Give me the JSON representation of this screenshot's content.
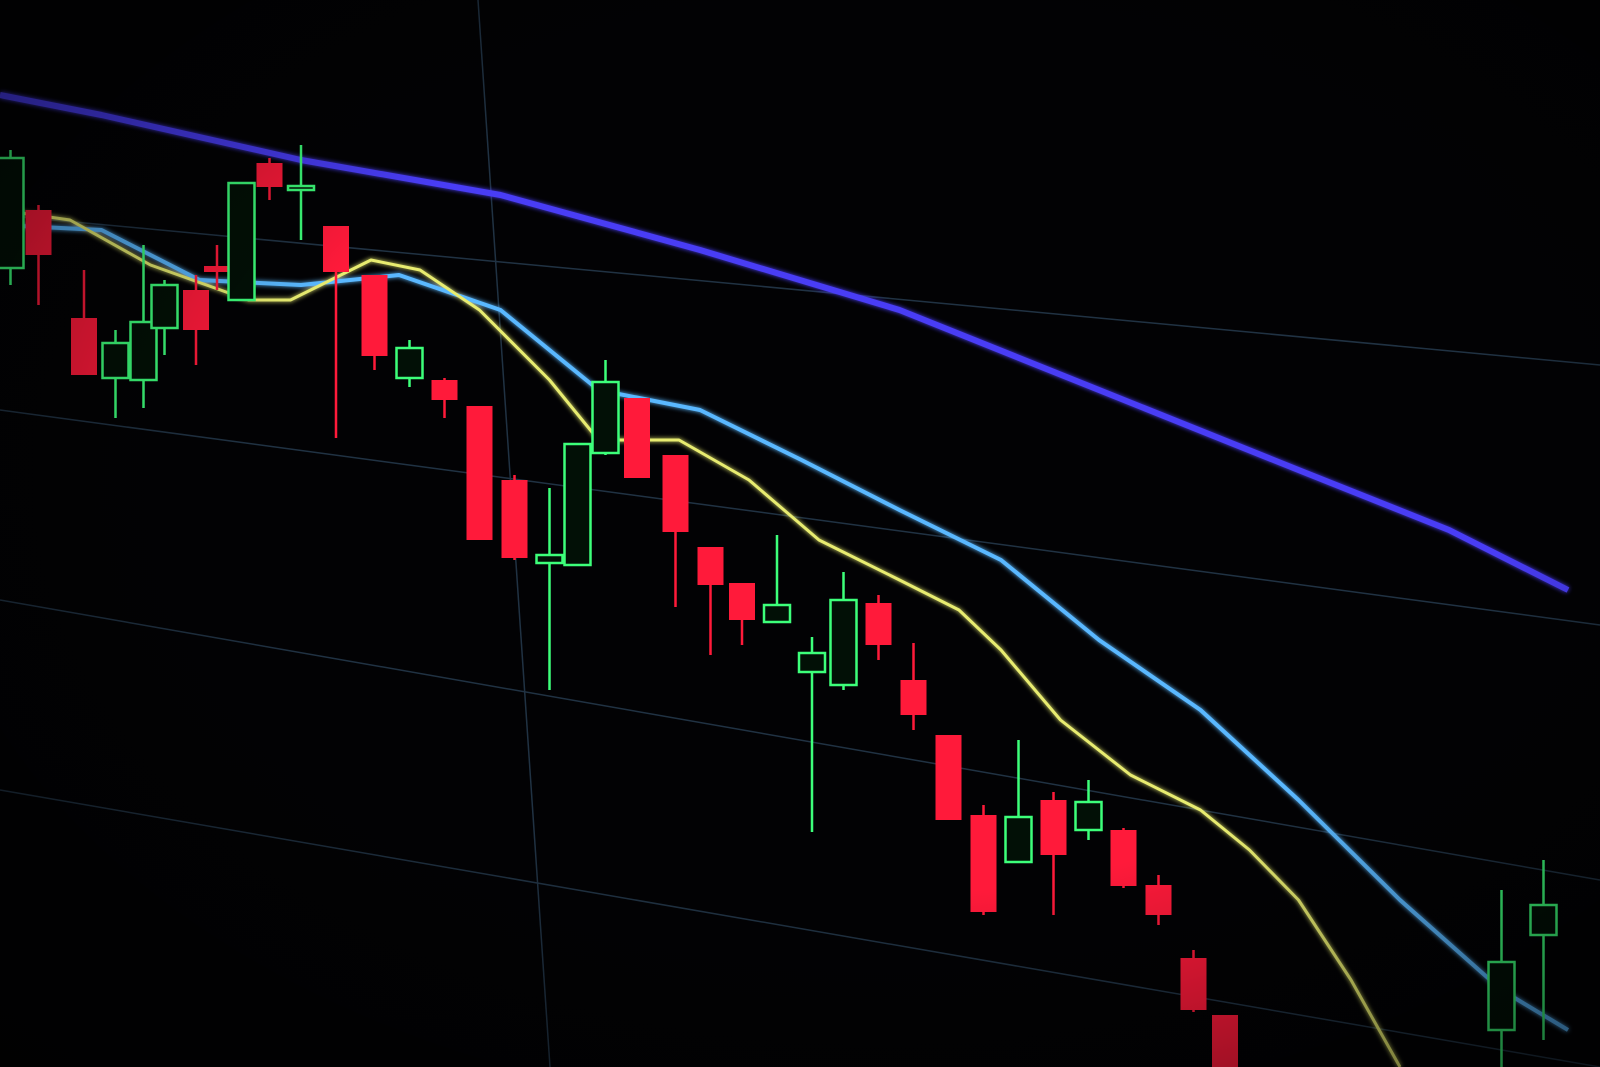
{
  "chart_data": {
    "type": "candlestick",
    "title": "",
    "xlabel": "",
    "ylabel": "",
    "grid": true,
    "legend": "none",
    "colors": {
      "up": "#3dff7a",
      "down": "#ff1a3a",
      "ma_slow": "#4a3cf5",
      "ma_mid": "#5ab8ff",
      "ma_fast": "#e8ec70",
      "grid": "#3a5a78",
      "background": "#020204"
    },
    "candles": [
      {
        "t": 0.3,
        "o": 79.9,
        "h": 91.7,
        "l": 78.2,
        "c": 90.9
      },
      {
        "t": 1.1,
        "o": 85.7,
        "h": 86.2,
        "l": 76.2,
        "c": 81.2
      },
      {
        "t": 2.4,
        "o": 74.9,
        "h": 79.7,
        "l": 69.2,
        "c": 69.2
      },
      {
        "t": 3.3,
        "o": 68.9,
        "h": 73.7,
        "l": 64.9,
        "c": 72.4
      },
      {
        "t": 4.1,
        "o": 68.7,
        "h": 82.2,
        "l": 65.9,
        "c": 74.5
      },
      {
        "t": 4.7,
        "o": 73.9,
        "h": 78.7,
        "l": 71.2,
        "c": 78.2
      },
      {
        "t": 5.6,
        "o": 77.7,
        "h": 79.2,
        "l": 70.2,
        "c": 73.7
      },
      {
        "t": 6.2,
        "o": 80.1,
        "h": 82.2,
        "l": 77.7,
        "c": 79.5
      },
      {
        "t": 6.9,
        "o": 76.7,
        "h": 88.4,
        "l": 76.7,
        "c": 88.4
      },
      {
        "t": 7.7,
        "o": 90.4,
        "h": 90.9,
        "l": 86.7,
        "c": 88.0
      },
      {
        "t": 8.6,
        "o": 87.7,
        "h": 92.2,
        "l": 82.7,
        "c": 88.1
      },
      {
        "t": 9.6,
        "o": 84.1,
        "h": 84.1,
        "l": 62.9,
        "c": 79.5
      },
      {
        "t": 10.7,
        "o": 79.2,
        "h": 79.2,
        "l": 69.7,
        "c": 71.1
      },
      {
        "t": 11.7,
        "o": 68.9,
        "h": 72.7,
        "l": 68.0,
        "c": 71.9
      },
      {
        "t": 12.7,
        "o": 68.7,
        "h": 68.9,
        "l": 64.9,
        "c": 66.7
      },
      {
        "t": 13.7,
        "o": 66.1,
        "h": 66.1,
        "l": 52.7,
        "c": 52.7
      },
      {
        "t": 14.7,
        "o": 58.7,
        "h": 59.2,
        "l": 50.7,
        "c": 50.9
      },
      {
        "t": 15.7,
        "o": 50.4,
        "h": 57.9,
        "l": 37.7,
        "c": 51.2
      },
      {
        "t": 16.5,
        "o": 50.2,
        "h": 62.3,
        "l": 50.2,
        "c": 62.3
      },
      {
        "t": 17.3,
        "o": 61.4,
        "h": 70.7,
        "l": 61.2,
        "c": 68.5
      },
      {
        "t": 18.2,
        "o": 66.9,
        "h": 66.9,
        "l": 58.9,
        "c": 58.9
      },
      {
        "t": 19.3,
        "o": 61.2,
        "h": 61.2,
        "l": 46.0,
        "c": 53.5
      },
      {
        "t": 20.3,
        "o": 52.0,
        "h": 52.0,
        "l": 41.2,
        "c": 48.2
      },
      {
        "t": 21.2,
        "o": 48.4,
        "h": 48.4,
        "l": 42.2,
        "c": 44.7
      },
      {
        "t": 22.2,
        "o": 44.5,
        "h": 53.2,
        "l": 44.5,
        "c": 46.2
      },
      {
        "t": 23.2,
        "o": 39.5,
        "h": 43.0,
        "l": 23.5,
        "c": 41.4
      },
      {
        "t": 24.1,
        "o": 38.2,
        "h": 49.5,
        "l": 37.7,
        "c": 46.7
      },
      {
        "t": 25.1,
        "o": 46.4,
        "h": 47.2,
        "l": 40.7,
        "c": 42.2
      },
      {
        "t": 26.1,
        "o": 38.7,
        "h": 42.4,
        "l": 33.7,
        "c": 35.2
      },
      {
        "t": 27.1,
        "o": 33.2,
        "h": 33.2,
        "l": 24.7,
        "c": 24.7
      },
      {
        "t": 28.1,
        "o": 25.2,
        "h": 26.2,
        "l": 15.2,
        "c": 15.5
      },
      {
        "t": 29.1,
        "o": 20.5,
        "h": 32.7,
        "l": 20.5,
        "c": 25.0
      },
      {
        "t": 30.1,
        "o": 26.7,
        "h": 27.5,
        "l": 15.2,
        "c": 21.2
      },
      {
        "t": 31.1,
        "o": 23.7,
        "h": 28.7,
        "l": 22.7,
        "c": 26.5
      },
      {
        "t": 32.1,
        "o": 23.7,
        "h": 23.9,
        "l": 17.9,
        "c": 18.1
      },
      {
        "t": 33.1,
        "o": 18.2,
        "h": 19.2,
        "l": 14.2,
        "c": 15.2
      },
      {
        "t": 34.1,
        "o": 10.9,
        "h": 11.7,
        "l": 5.5,
        "c": 5.7
      },
      {
        "t": 35.0,
        "o": 5.2,
        "h": 5.2,
        "l": 0,
        "c": 0
      },
      {
        "t": 42.9,
        "o": 3.7,
        "h": 17.7,
        "l": 0,
        "c": 10.5
      },
      {
        "t": 44.1,
        "o": 13.2,
        "h": 20.7,
        "l": 2.7,
        "c": 16.2
      }
    ],
    "series": [
      {
        "key": "ma_slow",
        "points": [
          [
            0,
            97.2
          ],
          [
            2.9,
            95.2
          ],
          [
            8.6,
            90.7
          ],
          [
            14.3,
            87.2
          ],
          [
            20,
            81.7
          ],
          [
            25.7,
            75.7
          ],
          [
            31.4,
            67.7
          ],
          [
            37.1,
            59.7
          ],
          [
            41.4,
            53.7
          ],
          [
            44.8,
            47.7
          ]
        ]
      },
      {
        "key": "ma_mid",
        "points": [
          [
            0,
            84.2
          ],
          [
            2.9,
            83.7
          ],
          [
            5.7,
            78.7
          ],
          [
            8.6,
            78.2
          ],
          [
            11.4,
            79.2
          ],
          [
            14.3,
            75.7
          ],
          [
            17.1,
            67.7
          ],
          [
            20,
            65.7
          ],
          [
            22.9,
            60.7
          ],
          [
            25.7,
            55.7
          ],
          [
            28.6,
            50.7
          ],
          [
            31.4,
            42.7
          ],
          [
            34.3,
            35.7
          ],
          [
            37.1,
            26.7
          ],
          [
            40,
            16.7
          ],
          [
            42.9,
            7.7
          ],
          [
            44.8,
            3.7
          ]
        ]
      },
      {
        "key": "ma_fast",
        "points": [
          [
            0,
            85.7
          ],
          [
            2,
            84.7
          ],
          [
            4.3,
            80.2
          ],
          [
            7.1,
            76.7
          ],
          [
            8.3,
            76.7
          ],
          [
            10.6,
            80.7
          ],
          [
            12,
            79.7
          ],
          [
            13.7,
            75.7
          ],
          [
            15.7,
            68.7
          ],
          [
            17.1,
            62.7
          ],
          [
            19.4,
            62.7
          ],
          [
            21.4,
            58.7
          ],
          [
            23.4,
            52.7
          ],
          [
            25.7,
            48.7
          ],
          [
            27.4,
            45.7
          ],
          [
            28.6,
            41.7
          ],
          [
            30.3,
            34.7
          ],
          [
            32.3,
            29.2
          ],
          [
            34.3,
            25.7
          ],
          [
            35.7,
            21.7
          ],
          [
            37.1,
            16.7
          ],
          [
            38.6,
            8.7
          ],
          [
            40,
            0
          ]
        ]
      }
    ]
  }
}
